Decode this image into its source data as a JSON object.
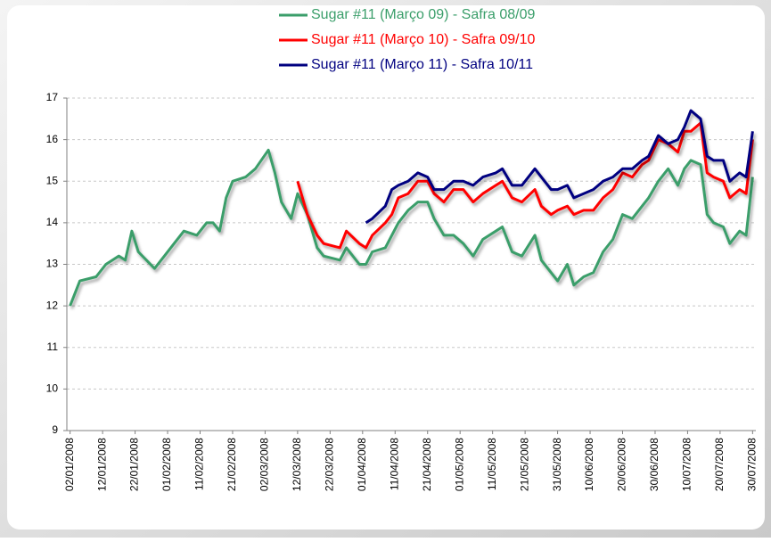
{
  "chart_data": {
    "type": "line",
    "x": [
      "02/01/2008",
      "05/01/2008",
      "10/01/2008",
      "13/01/2008",
      "17/01/2008",
      "19/01/2008",
      "21/01/2008",
      "23/01/2008",
      "28/01/2008",
      "31/01/2008",
      "03/02/2008",
      "06/02/2008",
      "10/02/2008",
      "13/02/2008",
      "15/02/2008",
      "17/02/2008",
      "19/02/2008",
      "21/02/2008",
      "25/02/2008",
      "28/02/2008",
      "03/03/2008",
      "05/03/2008",
      "07/03/2008",
      "10/03/2008",
      "12/03/2008",
      "15/03/2008",
      "18/03/2008",
      "20/03/2008",
      "25/03/2008",
      "27/03/2008",
      "31/03/2008",
      "02/04/2008",
      "04/04/2008",
      "08/04/2008",
      "10/04/2008",
      "12/04/2008",
      "15/04/2008",
      "18/04/2008",
      "21/04/2008",
      "23/04/2008",
      "26/04/2008",
      "29/04/2008",
      "02/05/2008",
      "05/05/2008",
      "08/05/2008",
      "12/05/2008",
      "14/05/2008",
      "17/05/2008",
      "20/05/2008",
      "24/05/2008",
      "26/05/2008",
      "29/05/2008",
      "31/05/2008",
      "03/06/2008",
      "05/06/2008",
      "08/06/2008",
      "11/06/2008",
      "14/06/2008",
      "17/06/2008",
      "20/06/2008",
      "23/06/2008",
      "26/06/2008",
      "28/06/2008",
      "01/07/2008",
      "04/07/2008",
      "07/07/2008",
      "09/07/2008",
      "11/07/2008",
      "14/07/2008",
      "16/07/2008",
      "18/07/2008",
      "21/07/2008",
      "23/07/2008",
      "26/07/2008",
      "28/07/2008",
      "30/07/2008"
    ],
    "series": [
      {
        "name": "Sugar #11 (Março 09) - Safra 08/09",
        "color": "#3a9e6a",
        "values": [
          12.0,
          12.6,
          12.7,
          13.0,
          13.2,
          13.1,
          13.8,
          13.3,
          12.9,
          13.2,
          13.5,
          13.8,
          13.7,
          14.0,
          14.0,
          13.8,
          14.6,
          15.0,
          15.1,
          15.3,
          15.75,
          15.2,
          14.5,
          14.1,
          14.7,
          14.2,
          13.4,
          13.2,
          13.1,
          13.4,
          13.0,
          13.0,
          13.3,
          13.4,
          13.7,
          14.0,
          14.3,
          14.5,
          14.5,
          14.1,
          13.7,
          13.7,
          13.5,
          13.2,
          13.6,
          13.8,
          13.9,
          13.3,
          13.2,
          13.7,
          13.1,
          12.8,
          12.6,
          13.0,
          12.5,
          12.7,
          12.8,
          13.3,
          13.6,
          14.2,
          14.1,
          14.4,
          14.6,
          15.0,
          15.3,
          14.9,
          15.3,
          15.5,
          15.4,
          14.2,
          14.0,
          13.9,
          13.5,
          13.8,
          13.7,
          15.1
        ]
      },
      {
        "name": "Sugar #11 (Março 10) - Safra 09/10",
        "color": "#ff0000",
        "values": [
          null,
          null,
          null,
          null,
          null,
          null,
          null,
          null,
          null,
          null,
          null,
          null,
          null,
          null,
          null,
          null,
          null,
          null,
          null,
          null,
          null,
          null,
          null,
          null,
          15.0,
          14.2,
          13.7,
          13.5,
          13.4,
          13.8,
          13.5,
          13.4,
          13.7,
          14.0,
          14.2,
          14.6,
          14.7,
          15.0,
          15.0,
          14.7,
          14.5,
          14.8,
          14.8,
          14.5,
          14.7,
          14.9,
          15.0,
          14.6,
          14.5,
          14.8,
          14.4,
          14.2,
          14.3,
          14.4,
          14.2,
          14.3,
          14.3,
          14.6,
          14.8,
          15.2,
          15.1,
          15.4,
          15.5,
          16.0,
          15.9,
          15.7,
          16.2,
          16.2,
          16.4,
          15.2,
          15.1,
          15.0,
          14.6,
          14.8,
          14.7,
          16.0
        ]
      },
      {
        "name": "Sugar #11 (Março 11) - Safra 10/11",
        "color": "#000080",
        "values": [
          null,
          null,
          null,
          null,
          null,
          null,
          null,
          null,
          null,
          null,
          null,
          null,
          null,
          null,
          null,
          null,
          null,
          null,
          null,
          null,
          null,
          null,
          null,
          null,
          null,
          null,
          null,
          null,
          null,
          null,
          null,
          14.0,
          14.1,
          14.4,
          14.8,
          14.9,
          15.0,
          15.2,
          15.1,
          14.8,
          14.8,
          15.0,
          15.0,
          14.9,
          15.1,
          15.2,
          15.3,
          14.9,
          14.9,
          15.3,
          15.1,
          14.8,
          14.8,
          14.9,
          14.6,
          14.7,
          14.8,
          15.0,
          15.1,
          15.3,
          15.3,
          15.5,
          15.6,
          16.1,
          15.9,
          16.0,
          16.3,
          16.7,
          16.5,
          15.6,
          15.5,
          15.5,
          15.0,
          15.2,
          15.1,
          16.2
        ]
      }
    ],
    "xlim": [
      "01/01/2008",
      "31/07/2008"
    ],
    "xticks": [
      "02/01/2008",
      "12/01/2008",
      "22/01/2008",
      "01/02/2008",
      "11/02/2008",
      "21/02/2008",
      "02/03/2008",
      "12/03/2008",
      "22/03/2008",
      "01/04/2008",
      "11/04/2008",
      "21/04/2008",
      "01/05/2008",
      "11/05/2008",
      "21/05/2008",
      "31/05/2008",
      "10/06/2008",
      "20/06/2008",
      "30/06/2008",
      "10/07/2008",
      "20/07/2008",
      "30/07/2008"
    ],
    "ylim": [
      9,
      17
    ],
    "yticks": [
      9,
      10,
      11,
      12,
      13,
      14,
      15,
      16,
      17
    ],
    "grid": true,
    "legend": "top"
  }
}
